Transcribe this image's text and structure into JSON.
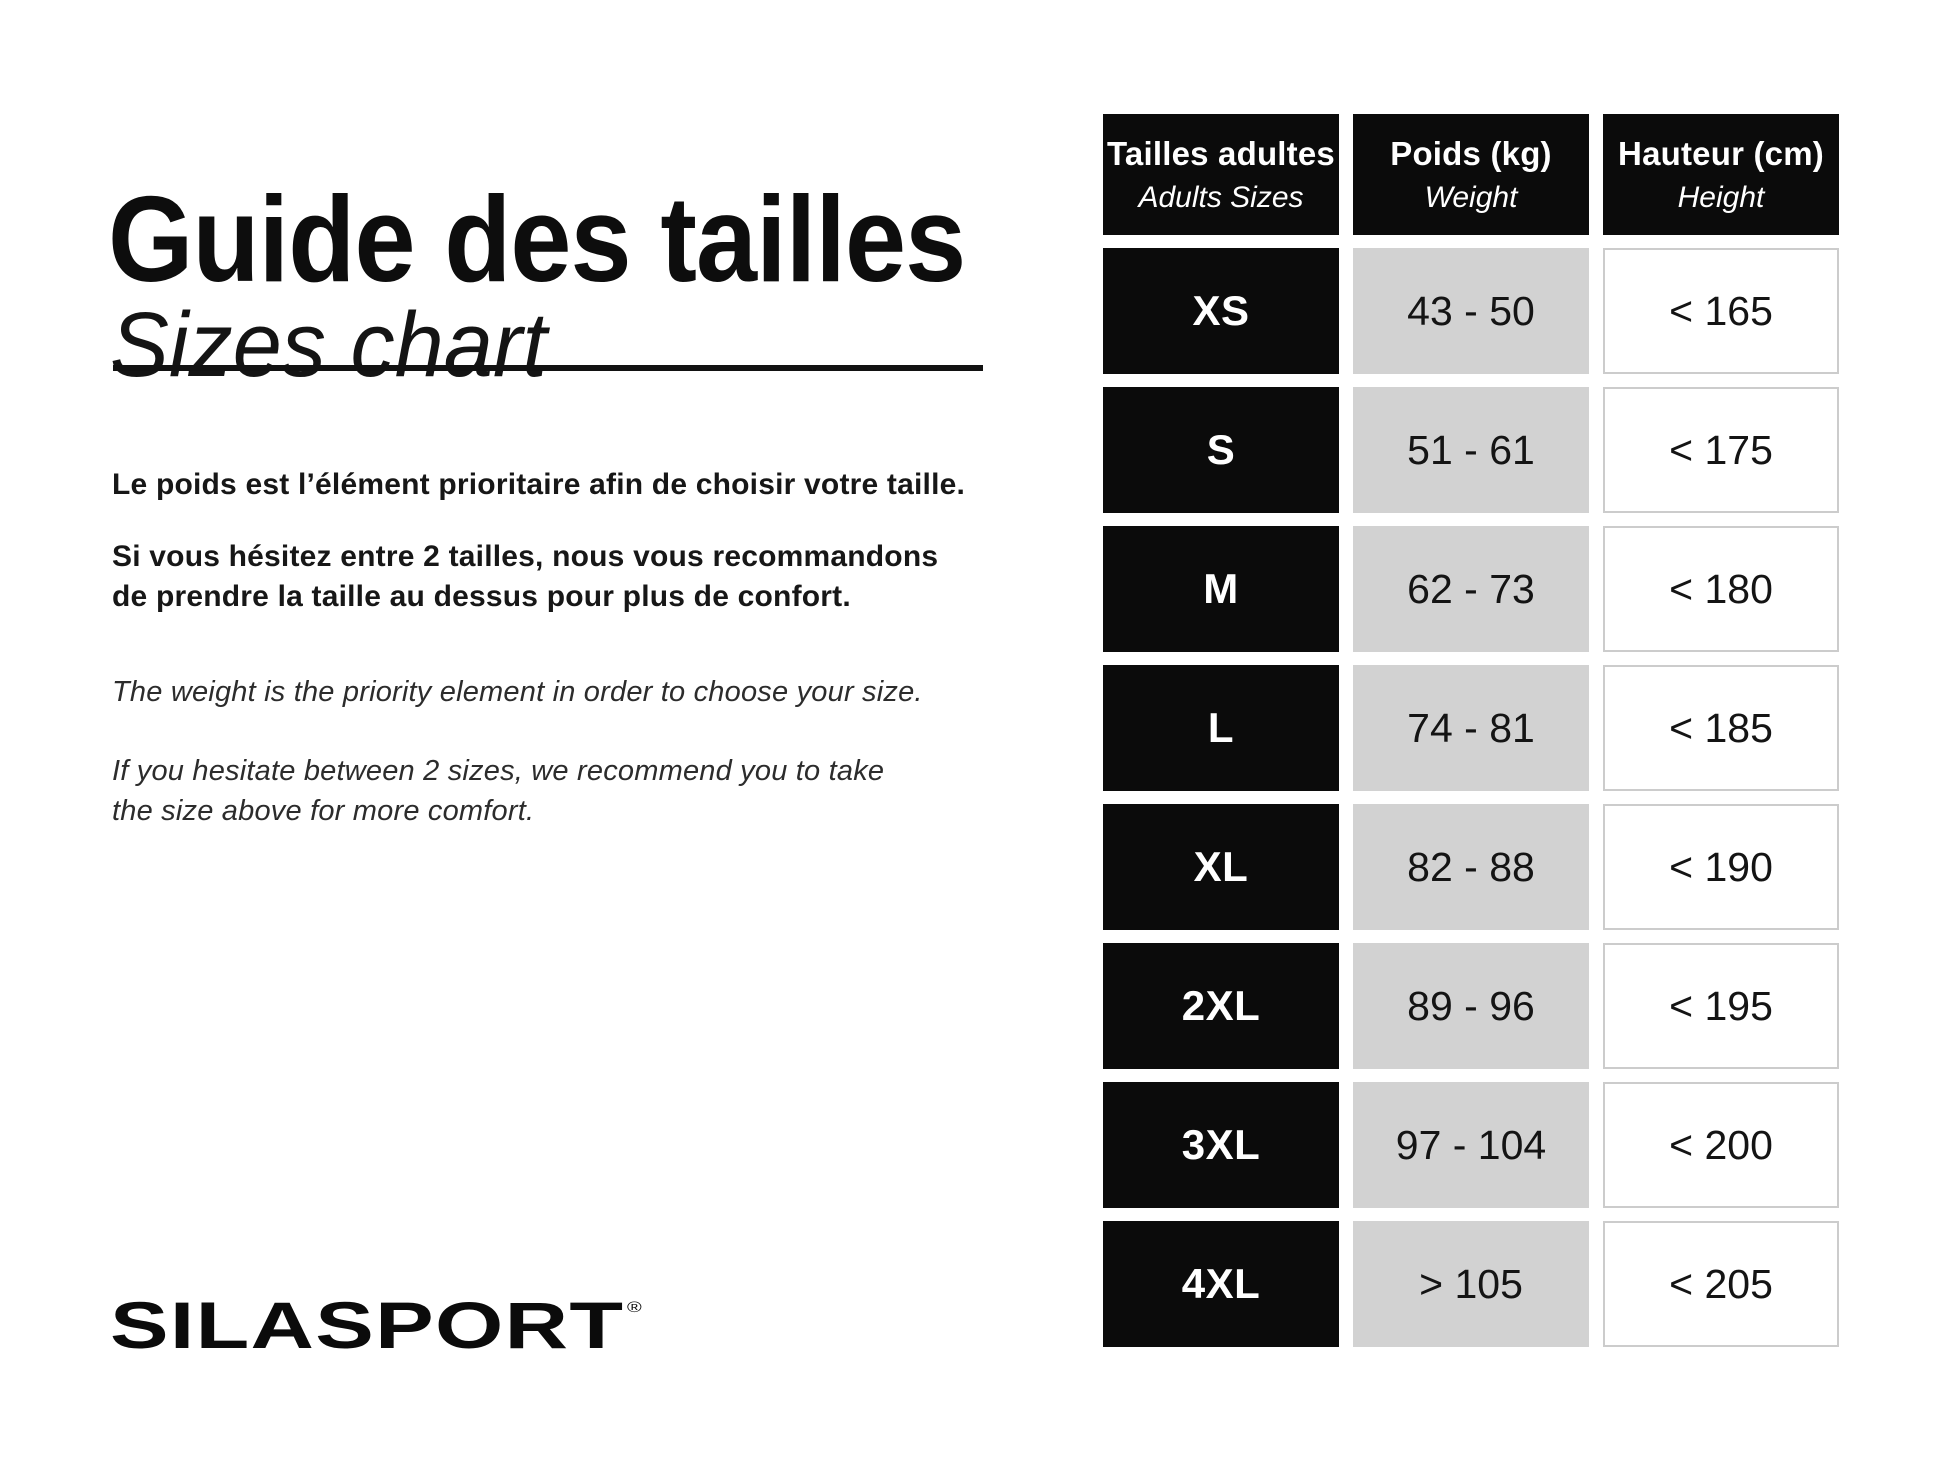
{
  "header": {
    "title_fr": "Guide des tailles",
    "title_en": "Sizes chart"
  },
  "intro": {
    "fr_priority": "Le poids est l’élément prioritaire afin de choisir votre taille.",
    "fr_hesitate_line1": "Si vous hésitez entre 2 tailles, nous vous recommandons",
    "fr_hesitate_line2": "de prendre la taille au dessus pour plus de confort.",
    "en_priority": "The weight is the priority element in order to choose your size.",
    "en_hesitate_line1": "If you hesitate between 2 sizes, we recommend you to take",
    "en_hesitate_line2": "the size above for more comfort."
  },
  "brand": {
    "logo_text": "SILASPORT",
    "registered_mark": "®"
  },
  "table": {
    "headers": [
      {
        "fr": "Tailles adultes",
        "en": "Adults Sizes"
      },
      {
        "fr": "Poids (kg)",
        "en": "Weight"
      },
      {
        "fr": "Hauteur (cm)",
        "en": "Height"
      }
    ],
    "rows": [
      {
        "size": "XS",
        "weight": "43 - 50",
        "height": "< 165"
      },
      {
        "size": "S",
        "weight": "51 - 61",
        "height": "< 175"
      },
      {
        "size": "M",
        "weight": "62 - 73",
        "height": "< 180"
      },
      {
        "size": "L",
        "weight": "74 - 81",
        "height": "< 185"
      },
      {
        "size": "XL",
        "weight": "82 - 88",
        "height": "< 190"
      },
      {
        "size": "2XL",
        "weight": "89 - 96",
        "height": "< 195"
      },
      {
        "size": "3XL",
        "weight": "97 - 104",
        "height": "< 200"
      },
      {
        "size": "4XL",
        "weight": "> 105",
        "height": "< 205"
      }
    ]
  },
  "colors": {
    "black": "#0b0b0b",
    "gray_cell": "#d2d2d2",
    "height_cell_border": "#cccccc"
  }
}
